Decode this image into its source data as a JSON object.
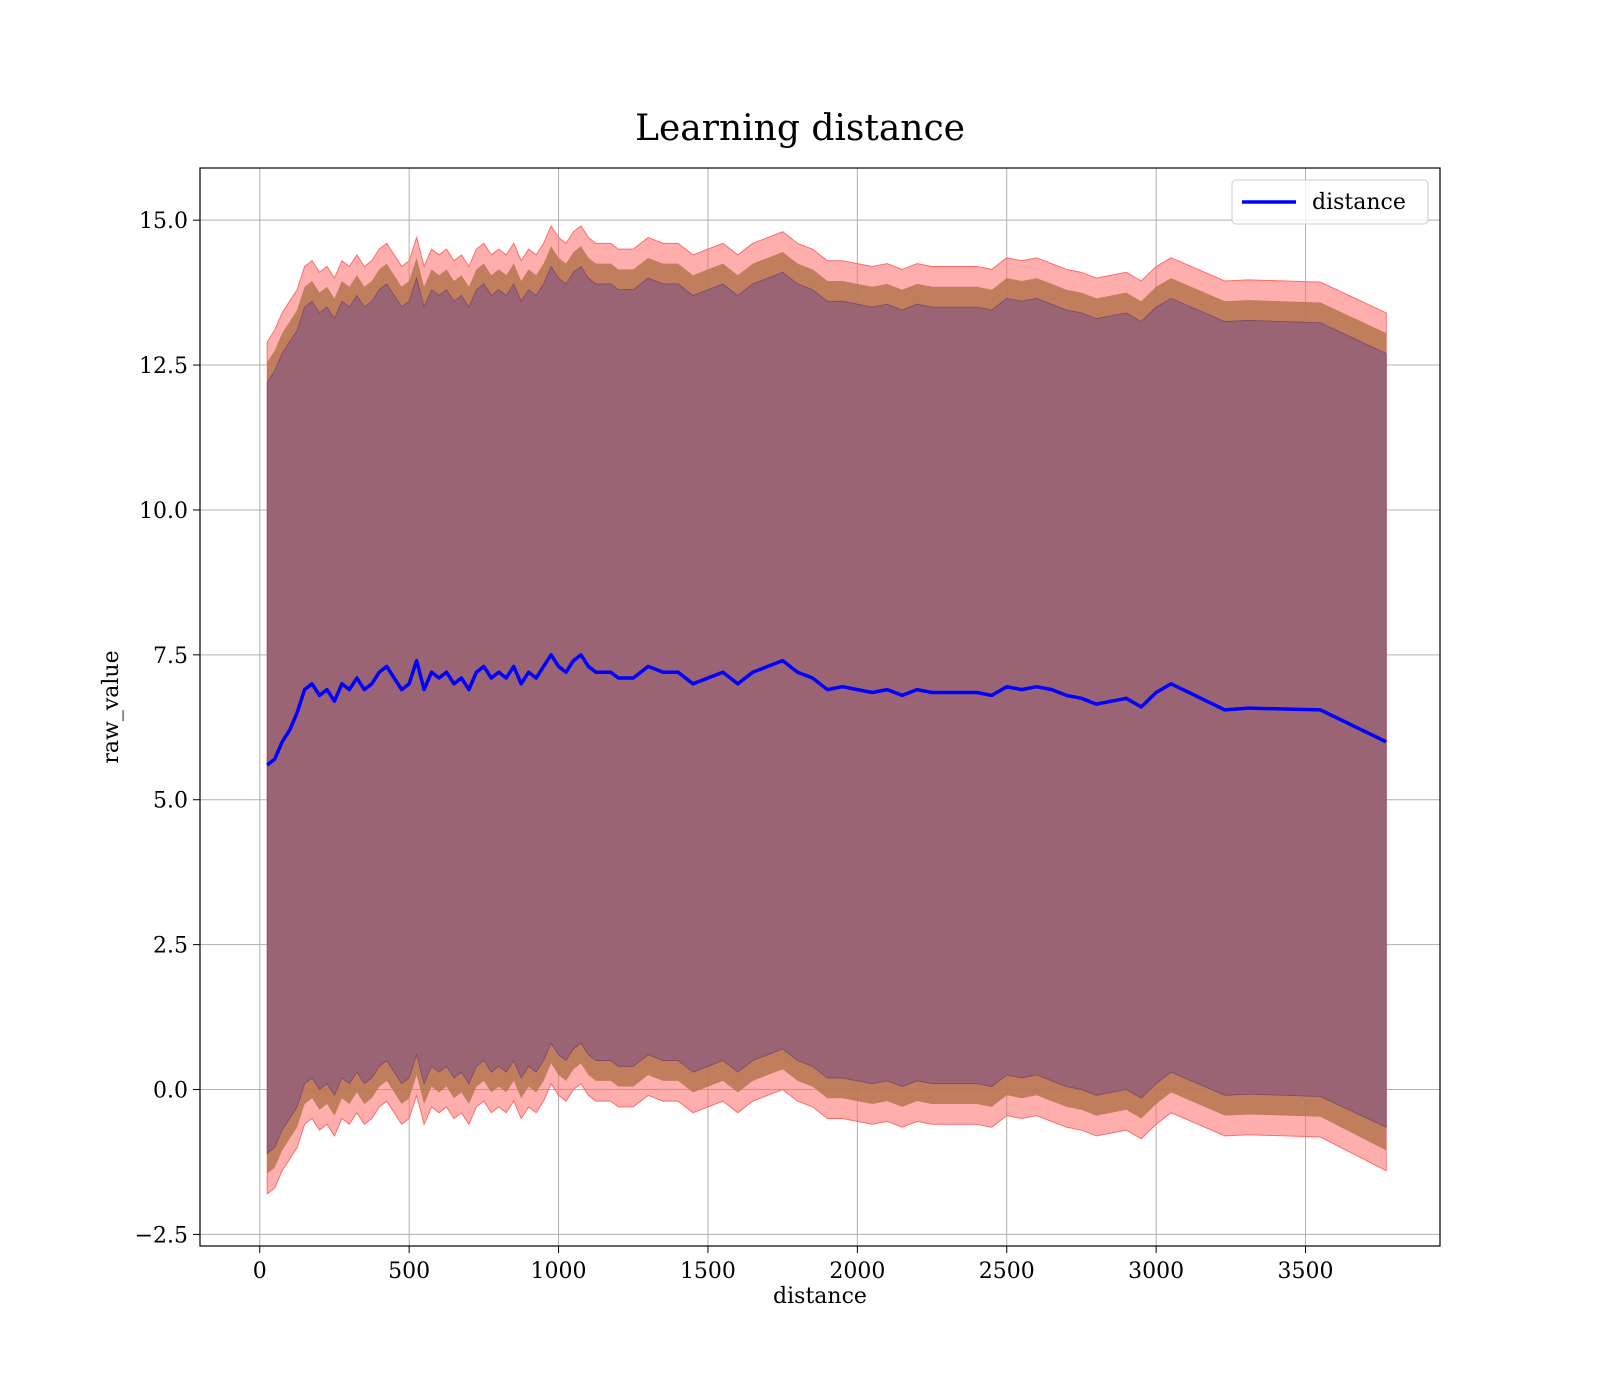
{
  "chart_data": {
    "type": "line",
    "title": "Learning distance",
    "xlabel": "distance",
    "ylabel": "raw_value",
    "xlim": [
      -200,
      3950
    ],
    "ylim": [
      -2.7,
      15.9
    ],
    "xticks": [
      0,
      500,
      1000,
      1500,
      2000,
      2500,
      3000,
      3500
    ],
    "xtick_labels": [
      "0",
      "500",
      "1000",
      "1500",
      "2000",
      "2500",
      "3000",
      "3500"
    ],
    "yticks": [
      -2.5,
      0.0,
      2.5,
      5.0,
      7.5,
      10.0,
      12.5,
      15.0
    ],
    "ytick_labels": [
      "−2.5",
      "0.0",
      "2.5",
      "5.0",
      "7.5",
      "10.0",
      "12.5",
      "15.0"
    ],
    "grid": true,
    "legend_position": "top-right",
    "colors": {
      "line": "#0000ff",
      "outer_band": "#ff6b6b",
      "middle_band": "#b5764f",
      "inner_band": "#9b6474"
    },
    "series": [
      {
        "name": "distance",
        "x": [
          25,
          50,
          75,
          100,
          125,
          150,
          175,
          200,
          225,
          250,
          275,
          300,
          325,
          350,
          375,
          400,
          425,
          450,
          475,
          500,
          525,
          550,
          575,
          600,
          625,
          650,
          675,
          700,
          725,
          750,
          775,
          800,
          825,
          850,
          875,
          900,
          925,
          950,
          975,
          1000,
          1025,
          1050,
          1075,
          1100,
          1125,
          1150,
          1175,
          1200,
          1250,
          1300,
          1350,
          1400,
          1450,
          1500,
          1550,
          1600,
          1650,
          1700,
          1750,
          1800,
          1850,
          1900,
          1950,
          2000,
          2050,
          2100,
          2150,
          2200,
          2250,
          2300,
          2350,
          2400,
          2450,
          2500,
          2550,
          2600,
          2650,
          2700,
          2750,
          2800,
          2850,
          2900,
          2950,
          3000,
          3050,
          3230,
          3310,
          3550,
          3770
        ],
        "y": [
          5.6,
          5.7,
          6.0,
          6.2,
          6.5,
          6.9,
          7.0,
          6.8,
          6.9,
          6.7,
          7.0,
          6.9,
          7.1,
          6.9,
          7.0,
          7.2,
          7.3,
          7.1,
          6.9,
          7.0,
          7.4,
          6.9,
          7.2,
          7.1,
          7.2,
          7.0,
          7.1,
          6.9,
          7.2,
          7.3,
          7.1,
          7.2,
          7.1,
          7.3,
          7.0,
          7.2,
          7.1,
          7.3,
          7.5,
          7.3,
          7.2,
          7.4,
          7.5,
          7.3,
          7.2,
          7.2,
          7.2,
          7.1,
          7.1,
          7.3,
          7.2,
          7.2,
          7.0,
          7.1,
          7.2,
          7.0,
          7.2,
          7.3,
          7.4,
          7.2,
          7.1,
          6.9,
          6.95,
          6.9,
          6.85,
          6.9,
          6.8,
          6.9,
          6.85,
          6.85,
          6.85,
          6.85,
          6.8,
          6.95,
          6.9,
          6.95,
          6.9,
          6.8,
          6.75,
          6.65,
          6.7,
          6.75,
          6.6,
          6.85,
          7.0,
          6.55,
          6.58,
          6.55,
          6.0
        ]
      }
    ],
    "bands": {
      "outer_upper": [
        12.9,
        13.1,
        13.4,
        13.6,
        13.8,
        14.2,
        14.3,
        14.1,
        14.2,
        14.0,
        14.3,
        14.2,
        14.4,
        14.2,
        14.3,
        14.5,
        14.6,
        14.4,
        14.2,
        14.3,
        14.7,
        14.2,
        14.5,
        14.4,
        14.5,
        14.3,
        14.4,
        14.2,
        14.5,
        14.6,
        14.4,
        14.5,
        14.4,
        14.6,
        14.3,
        14.5,
        14.4,
        14.6,
        14.9,
        14.7,
        14.6,
        14.8,
        14.9,
        14.7,
        14.6,
        14.6,
        14.6,
        14.5,
        14.5,
        14.7,
        14.6,
        14.6,
        14.4,
        14.5,
        14.6,
        14.4,
        14.6,
        14.7,
        14.8,
        14.6,
        14.5,
        14.3,
        14.3,
        14.25,
        14.2,
        14.25,
        14.15,
        14.25,
        14.2,
        14.2,
        14.2,
        14.2,
        14.15,
        14.35,
        14.3,
        14.35,
        14.25,
        14.15,
        14.1,
        14.0,
        14.05,
        14.1,
        13.95,
        14.2,
        14.35,
        13.95,
        13.97,
        13.93,
        13.4
      ],
      "middle_upper": [
        12.55,
        12.75,
        13.05,
        13.25,
        13.45,
        13.85,
        13.95,
        13.75,
        13.85,
        13.65,
        13.95,
        13.85,
        14.05,
        13.85,
        13.95,
        14.15,
        14.25,
        14.05,
        13.85,
        13.95,
        14.35,
        13.85,
        14.15,
        14.05,
        14.15,
        13.95,
        14.05,
        13.85,
        14.15,
        14.25,
        14.05,
        14.15,
        14.05,
        14.25,
        13.95,
        14.15,
        14.05,
        14.25,
        14.55,
        14.35,
        14.25,
        14.45,
        14.55,
        14.35,
        14.25,
        14.25,
        14.25,
        14.15,
        14.15,
        14.35,
        14.25,
        14.25,
        14.05,
        14.15,
        14.25,
        14.05,
        14.25,
        14.35,
        14.45,
        14.25,
        14.15,
        13.95,
        13.95,
        13.9,
        13.85,
        13.9,
        13.8,
        13.9,
        13.85,
        13.85,
        13.85,
        13.85,
        13.8,
        14.0,
        13.95,
        14.0,
        13.9,
        13.8,
        13.75,
        13.65,
        13.7,
        13.75,
        13.6,
        13.85,
        14.0,
        13.6,
        13.62,
        13.58,
        13.05
      ],
      "inner_upper": [
        12.2,
        12.4,
        12.7,
        12.9,
        13.1,
        13.5,
        13.6,
        13.4,
        13.5,
        13.3,
        13.6,
        13.5,
        13.7,
        13.5,
        13.6,
        13.8,
        13.9,
        13.7,
        13.5,
        13.6,
        14.0,
        13.5,
        13.8,
        13.7,
        13.8,
        13.6,
        13.7,
        13.5,
        13.8,
        13.9,
        13.7,
        13.8,
        13.7,
        13.9,
        13.6,
        13.8,
        13.7,
        13.9,
        14.2,
        14.0,
        13.9,
        14.1,
        14.2,
        14.0,
        13.9,
        13.9,
        13.9,
        13.8,
        13.8,
        14.0,
        13.9,
        13.9,
        13.7,
        13.8,
        13.9,
        13.7,
        13.9,
        14.0,
        14.1,
        13.9,
        13.8,
        13.6,
        13.6,
        13.55,
        13.5,
        13.55,
        13.45,
        13.55,
        13.5,
        13.5,
        13.5,
        13.5,
        13.45,
        13.65,
        13.6,
        13.65,
        13.55,
        13.45,
        13.4,
        13.3,
        13.35,
        13.4,
        13.25,
        13.5,
        13.65,
        13.25,
        13.27,
        13.23,
        12.7
      ],
      "inner_lower": [
        -1.1,
        -1.0,
        -0.7,
        -0.5,
        -0.3,
        0.1,
        0.2,
        0.0,
        0.1,
        -0.1,
        0.2,
        0.1,
        0.3,
        0.1,
        0.2,
        0.4,
        0.5,
        0.3,
        0.1,
        0.2,
        0.6,
        0.1,
        0.4,
        0.3,
        0.4,
        0.2,
        0.3,
        0.1,
        0.4,
        0.5,
        0.3,
        0.4,
        0.3,
        0.5,
        0.2,
        0.4,
        0.3,
        0.5,
        0.8,
        0.6,
        0.5,
        0.7,
        0.8,
        0.6,
        0.5,
        0.5,
        0.5,
        0.4,
        0.4,
        0.6,
        0.5,
        0.5,
        0.3,
        0.4,
        0.5,
        0.3,
        0.5,
        0.6,
        0.7,
        0.5,
        0.4,
        0.2,
        0.2,
        0.15,
        0.1,
        0.15,
        0.05,
        0.15,
        0.1,
        0.1,
        0.1,
        0.1,
        0.05,
        0.25,
        0.2,
        0.25,
        0.15,
        0.05,
        0.0,
        -0.1,
        -0.05,
        0.0,
        -0.15,
        0.1,
        0.3,
        -0.1,
        -0.08,
        -0.12,
        -0.65
      ],
      "middle_lower": [
        -1.45,
        -1.35,
        -1.05,
        -0.85,
        -0.65,
        -0.25,
        -0.15,
        -0.35,
        -0.25,
        -0.45,
        -0.15,
        -0.25,
        -0.05,
        -0.25,
        -0.15,
        0.05,
        0.15,
        -0.05,
        -0.25,
        -0.15,
        0.25,
        -0.25,
        0.05,
        -0.05,
        0.05,
        -0.15,
        -0.05,
        -0.25,
        0.05,
        0.15,
        -0.05,
        0.05,
        -0.05,
        0.15,
        -0.15,
        0.05,
        -0.05,
        0.15,
        0.45,
        0.25,
        0.15,
        0.35,
        0.45,
        0.25,
        0.15,
        0.15,
        0.15,
        0.05,
        0.05,
        0.25,
        0.15,
        0.15,
        -0.05,
        0.05,
        0.15,
        -0.05,
        0.15,
        0.25,
        0.35,
        0.15,
        0.05,
        -0.15,
        -0.15,
        -0.2,
        -0.25,
        -0.2,
        -0.3,
        -0.2,
        -0.25,
        -0.25,
        -0.25,
        -0.25,
        -0.3,
        -0.1,
        -0.15,
        -0.1,
        -0.2,
        -0.3,
        -0.35,
        -0.45,
        -0.4,
        -0.35,
        -0.5,
        -0.25,
        -0.05,
        -0.45,
        -0.43,
        -0.47,
        -1.05
      ],
      "outer_lower": [
        -1.8,
        -1.7,
        -1.4,
        -1.2,
        -1.0,
        -0.6,
        -0.5,
        -0.7,
        -0.6,
        -0.8,
        -0.5,
        -0.6,
        -0.4,
        -0.6,
        -0.5,
        -0.3,
        -0.2,
        -0.4,
        -0.6,
        -0.5,
        -0.1,
        -0.6,
        -0.3,
        -0.4,
        -0.3,
        -0.5,
        -0.4,
        -0.6,
        -0.3,
        -0.2,
        -0.4,
        -0.3,
        -0.4,
        -0.2,
        -0.5,
        -0.3,
        -0.4,
        -0.2,
        0.1,
        -0.1,
        -0.2,
        0.0,
        0.1,
        -0.1,
        -0.2,
        -0.2,
        -0.2,
        -0.3,
        -0.3,
        -0.1,
        -0.2,
        -0.2,
        -0.4,
        -0.3,
        -0.2,
        -0.4,
        -0.2,
        -0.1,
        0.0,
        -0.2,
        -0.3,
        -0.5,
        -0.5,
        -0.55,
        -0.6,
        -0.55,
        -0.65,
        -0.55,
        -0.6,
        -0.6,
        -0.6,
        -0.6,
        -0.65,
        -0.45,
        -0.5,
        -0.45,
        -0.55,
        -0.65,
        -0.7,
        -0.8,
        -0.75,
        -0.7,
        -0.85,
        -0.6,
        -0.4,
        -0.8,
        -0.78,
        -0.82,
        -1.4
      ]
    }
  }
}
